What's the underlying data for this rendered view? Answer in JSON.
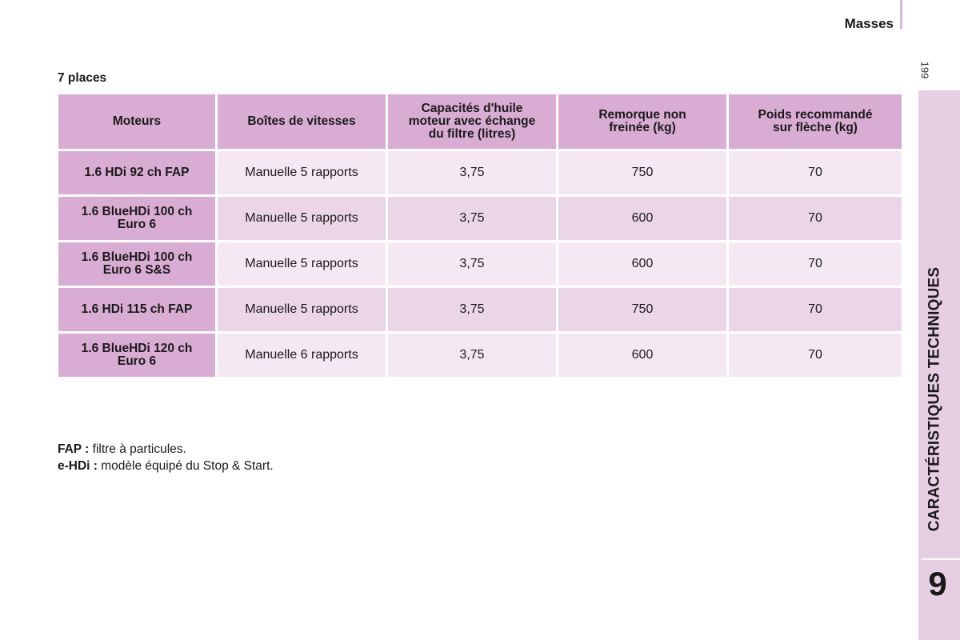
{
  "header": {
    "title": "Masses",
    "page_number": "199"
  },
  "side_tab": {
    "label": "CARACTÉRISTIQUES TECHNIQUES",
    "chapter": "9",
    "color": "#e6cfe3"
  },
  "section": {
    "title": "7 places"
  },
  "table": {
    "header_color": "#d9acd3",
    "headers": {
      "col1": "Moteurs",
      "col2": "Boîtes de vitesses",
      "col3_line1": "Capacités d'huile",
      "col3_line2": "moteur avec échange",
      "col3_line3": "du filtre (litres)",
      "col4_line1": "Remorque non",
      "col4_line2": "freinée (kg)",
      "col5_line1": "Poids recommandé",
      "col5_line2": "sur flèche (kg)"
    },
    "rows": [
      {
        "motor_line1": "1.6 HDi 92 ch FAP",
        "motor_line2": "",
        "gearbox": "Manuelle 5 rapports",
        "oil": "3,75",
        "trailer": "750",
        "nose_weight": "70"
      },
      {
        "motor_line1": "1.6 BlueHDi 100 ch",
        "motor_line2": "Euro 6",
        "gearbox": "Manuelle 5 rapports",
        "oil": "3,75",
        "trailer": "600",
        "nose_weight": "70"
      },
      {
        "motor_line1": "1.6 BlueHDi 100 ch",
        "motor_line2": "Euro 6 S&S",
        "gearbox": "Manuelle 5 rapports",
        "oil": "3,75",
        "trailer": "600",
        "nose_weight": "70"
      },
      {
        "motor_line1": "1.6 HDi 115 ch FAP",
        "motor_line2": "",
        "gearbox": "Manuelle 5 rapports",
        "oil": "3,75",
        "trailer": "750",
        "nose_weight": "70"
      },
      {
        "motor_line1": "1.6 BlueHDi 120 ch",
        "motor_line2": "Euro 6",
        "gearbox": "Manuelle 6 rapports",
        "oil": "3,75",
        "trailer": "600",
        "nose_weight": "70"
      }
    ]
  },
  "notes": [
    {
      "term": "FAP :",
      "text": " filtre à particules."
    },
    {
      "term": "e-HDi :",
      "text": " modèle équipé du Stop & Start."
    }
  ]
}
